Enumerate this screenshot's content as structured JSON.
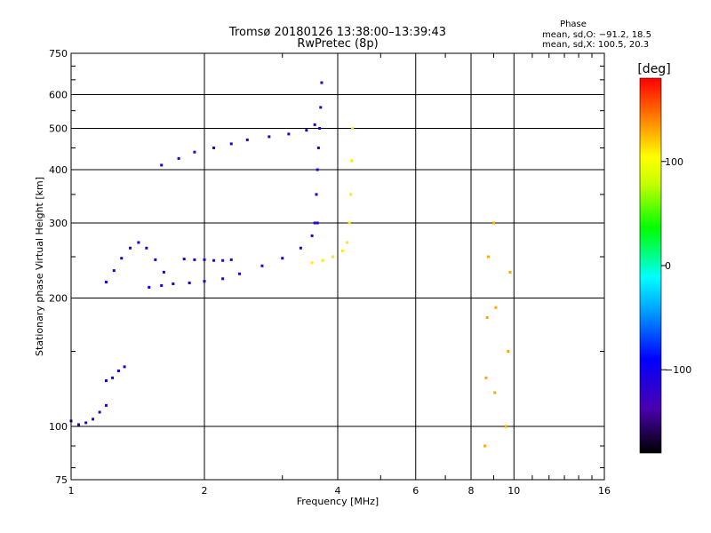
{
  "chart_data": {
    "type": "scatter",
    "title": "Tromsø 20180126 13:38:00–13:39:43",
    "subtitle": "RwPretec (8p)",
    "xlabel": "Frequency [MHz]",
    "ylabel": "Stationary phase Virtual Height [km]",
    "x_scale": "log",
    "y_scale": "log",
    "xlim": [
      1,
      16
    ],
    "ylim": [
      75,
      750
    ],
    "x_ticks": [
      "1",
      "2",
      "4",
      "6",
      "8",
      "10",
      "16"
    ],
    "y_ticks": [
      "75",
      "100",
      "200",
      "300",
      "400",
      "500",
      "600",
      "750"
    ],
    "grid": true,
    "stats": {
      "heading": "Phase",
      "line_o": "mean, sd,O: −91.2, 18.5",
      "line_x": "mean, sd,X: 100.5, 20.3"
    },
    "colorbar": {
      "label": "[deg]",
      "range": [
        -180,
        180
      ],
      "ticks": [
        "100",
        "0",
        "−100"
      ],
      "tick_values": [
        100,
        0,
        -100
      ]
    },
    "traces": [
      {
        "name": "",
        "color_deg": -100,
        "x": [
          1.2,
          1.25,
          1.3,
          1.36,
          1.42,
          1.48,
          1.55,
          1.62
        ],
        "y": [
          218,
          232,
          248,
          262,
          270,
          262,
          246,
          230
        ]
      },
      {
        "name": "",
        "color_deg": -105,
        "x": [
          1.5,
          1.6,
          1.7,
          1.85,
          2.0,
          2.2,
          2.4,
          2.7,
          3.0,
          3.3,
          3.5,
          3.6
        ],
        "y": [
          212,
          214,
          216,
          217,
          219,
          222,
          228,
          238,
          248,
          262,
          280,
          300
        ]
      },
      {
        "name": "",
        "color_deg": -110,
        "x": [
          1.8,
          1.9,
          2.0,
          2.1,
          2.2,
          2.3
        ],
        "y": [
          247,
          246,
          246,
          245,
          245,
          246
        ]
      },
      {
        "name": "",
        "color_deg": -110,
        "x": [
          1.6,
          1.75,
          1.9,
          2.1,
          2.3,
          2.5,
          2.8,
          3.1,
          3.4,
          3.55
        ],
        "y": [
          410,
          425,
          440,
          450,
          460,
          470,
          478,
          485,
          495,
          510
        ]
      },
      {
        "name": "",
        "color_deg": -115,
        "x": [
          3.55,
          3.58,
          3.6,
          3.62,
          3.64,
          3.66,
          3.68
        ],
        "y": [
          300,
          350,
          400,
          450,
          500,
          560,
          640
        ]
      },
      {
        "name": "",
        "color_deg": 110,
        "x": [
          3.5,
          3.7,
          3.9,
          4.1,
          4.2,
          4.25,
          4.28,
          4.3,
          4.32
        ],
        "y": [
          242,
          245,
          250,
          258,
          270,
          300,
          350,
          420,
          500
        ]
      },
      {
        "name": "",
        "color_deg": -120,
        "x": [
          1.0,
          1.04,
          1.08,
          1.12,
          1.16,
          1.2
        ],
        "y": [
          103,
          101,
          102,
          104,
          108,
          112
        ]
      },
      {
        "name": "",
        "color_deg": -95,
        "x": [
          1.2,
          1.24,
          1.28,
          1.32
        ],
        "y": [
          128,
          130,
          135,
          138
        ]
      },
      {
        "name": "",
        "color_deg": 130,
        "x": [
          8.6,
          8.65,
          8.7,
          8.75,
          9.0,
          9.05,
          9.1,
          9.6,
          9.7,
          9.8
        ],
        "y": [
          90,
          130,
          180,
          250,
          300,
          120,
          190,
          100,
          150,
          230
        ]
      }
    ]
  }
}
